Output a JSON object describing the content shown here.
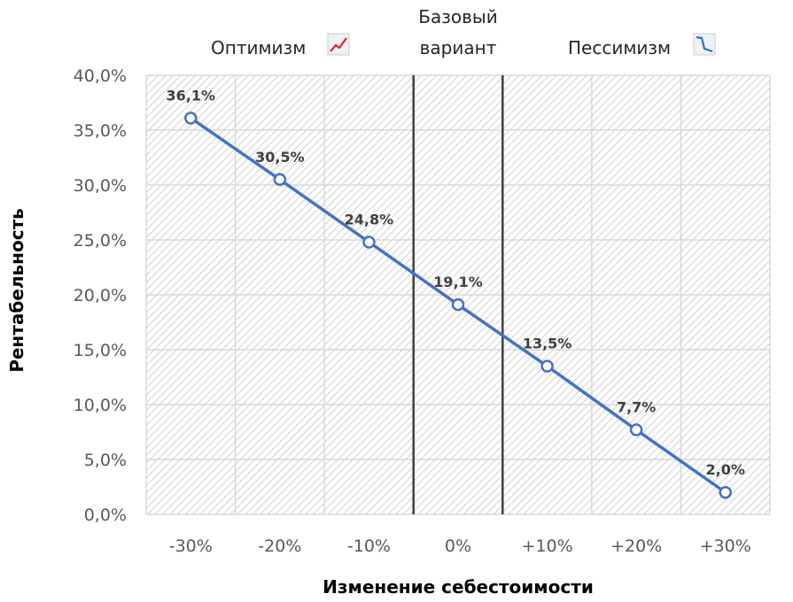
{
  "chart_data": {
    "type": "line",
    "categories": [
      "-30%",
      "-20%",
      "-10%",
      "0%",
      "+10%",
      "+20%",
      "+30%"
    ],
    "series": [
      {
        "values": [
          36.1,
          30.5,
          24.8,
          19.1,
          13.5,
          7.7,
          2.0
        ]
      }
    ],
    "data_labels": [
      "36,1%",
      "30,5%",
      "24,8%",
      "19,1%",
      "13,5%",
      "7,7%",
      "2,0%"
    ],
    "y_ticks": [
      0,
      5,
      10,
      15,
      20,
      25,
      30,
      35,
      40
    ],
    "y_tick_labels": [
      "0,0%",
      "5,0%",
      "10,0%",
      "15,0%",
      "20,0%",
      "25,0%",
      "30,0%",
      "35,0%",
      "40,0%"
    ],
    "ylim": [
      0,
      40
    ],
    "xlabel": "Изменение себестоимости",
    "ylabel": "Рентабельность",
    "grid": true,
    "base_band": [
      "-5%",
      "+5%"
    ],
    "colors": {
      "line": "#4472C4",
      "grid": "#d9d9d9",
      "band": "#404040"
    }
  },
  "header": {
    "optimism": "Оптимизм",
    "base_line1": "Базовый",
    "base_line2": "вариант",
    "pessimism": "Пессимизм",
    "optimism_icon": "trend-up-icon",
    "pessimism_icon": "trend-down-icon"
  }
}
